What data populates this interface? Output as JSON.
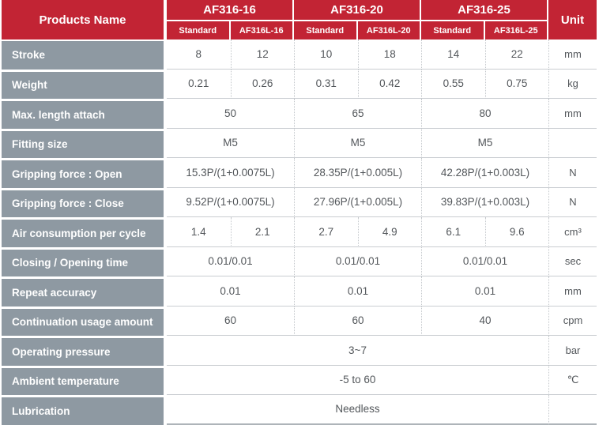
{
  "header": {
    "title": "Products Name",
    "unit_label": "Unit",
    "products": [
      {
        "name": "AF316-16",
        "variants": [
          "Standard",
          "AF316L-16"
        ]
      },
      {
        "name": "AF316-20",
        "variants": [
          "Standard",
          "AF316L-20"
        ]
      },
      {
        "name": "AF316-25",
        "variants": [
          "Standard",
          "AF316L-25"
        ]
      }
    ]
  },
  "colors": {
    "accent_red": "#c22434",
    "label_gray": "#8e99a2",
    "text_dark": "#53575b",
    "grid_line": "#c9cdd1",
    "dotted_line": "#c3c7cb"
  },
  "rows": [
    {
      "label": "Stroke",
      "unit": "mm",
      "cells": [
        {
          "text": "8",
          "span": 1
        },
        {
          "text": "12",
          "span": 1
        },
        {
          "text": "10",
          "span": 1
        },
        {
          "text": "18",
          "span": 1
        },
        {
          "text": "14",
          "span": 1
        },
        {
          "text": "22",
          "span": 1
        }
      ]
    },
    {
      "label": "Weight",
      "unit": "kg",
      "cells": [
        {
          "text": "0.21",
          "span": 1
        },
        {
          "text": "0.26",
          "span": 1
        },
        {
          "text": "0.31",
          "span": 1
        },
        {
          "text": "0.42",
          "span": 1
        },
        {
          "text": "0.55",
          "span": 1
        },
        {
          "text": "0.75",
          "span": 1
        }
      ]
    },
    {
      "label": "Max. length attach",
      "unit": "mm",
      "cells": [
        {
          "text": "50",
          "span": 2
        },
        {
          "text": "65",
          "span": 2
        },
        {
          "text": "80",
          "span": 2
        }
      ]
    },
    {
      "label": "Fitting size",
      "unit": "",
      "cells": [
        {
          "text": "M5",
          "span": 2
        },
        {
          "text": "M5",
          "span": 2
        },
        {
          "text": "M5",
          "span": 2
        }
      ]
    },
    {
      "label": "Gripping force : Open",
      "unit": "N",
      "cells": [
        {
          "text": "15.3P/(1+0.0075L)",
          "span": 2
        },
        {
          "text": "28.35P/(1+0.005L)",
          "span": 2
        },
        {
          "text": "42.28P/(1+0.003L)",
          "span": 2
        }
      ]
    },
    {
      "label": "Gripping force : Close",
      "unit": "N",
      "cells": [
        {
          "text": "9.52P/(1+0.0075L)",
          "span": 2
        },
        {
          "text": "27.96P/(1+0.005L)",
          "span": 2
        },
        {
          "text": "39.83P/(1+0.003L)",
          "span": 2
        }
      ]
    },
    {
      "label": "Air consumption per cycle",
      "unit": "cm³",
      "cells": [
        {
          "text": "1.4",
          "span": 1
        },
        {
          "text": "2.1",
          "span": 1
        },
        {
          "text": "2.7",
          "span": 1
        },
        {
          "text": "4.9",
          "span": 1
        },
        {
          "text": "6.1",
          "span": 1
        },
        {
          "text": "9.6",
          "span": 1
        }
      ]
    },
    {
      "label": "Closing / Opening time",
      "unit": "sec",
      "cells": [
        {
          "text": "0.01/0.01",
          "span": 2
        },
        {
          "text": "0.01/0.01",
          "span": 2
        },
        {
          "text": "0.01/0.01",
          "span": 2
        }
      ]
    },
    {
      "label": "Repeat accuracy",
      "unit": "mm",
      "cells": [
        {
          "text": "0.01",
          "span": 2
        },
        {
          "text": "0.01",
          "span": 2
        },
        {
          "text": "0.01",
          "span": 2
        }
      ]
    },
    {
      "label": "Continuation usage amount",
      "unit": "cpm",
      "cells": [
        {
          "text": "60",
          "span": 2
        },
        {
          "text": "60",
          "span": 2
        },
        {
          "text": "40",
          "span": 2
        }
      ]
    },
    {
      "label": "Operating pressure",
      "unit": "bar",
      "cells": [
        {
          "text": "3~7",
          "span": 6
        }
      ]
    },
    {
      "label": "Ambient temperature",
      "unit": "℃",
      "cells": [
        {
          "text": "-5 to 60",
          "span": 6
        }
      ]
    },
    {
      "label": "Lubrication",
      "unit": "",
      "cells": [
        {
          "text": "Needless",
          "span": 6
        }
      ]
    }
  ]
}
